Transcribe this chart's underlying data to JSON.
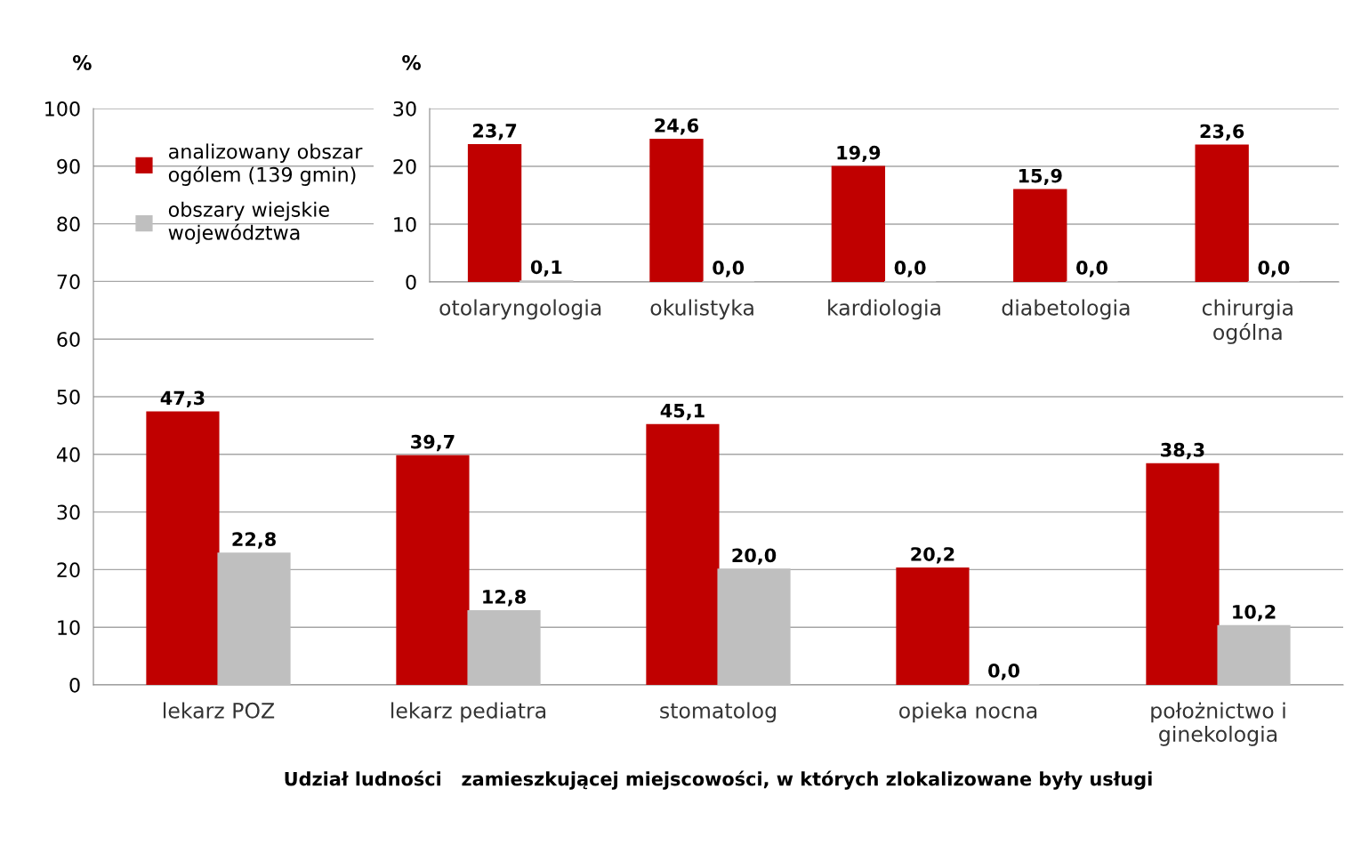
{
  "chart_data": [
    {
      "type": "bar",
      "ylabel": "%",
      "xlabel": "Udział ludności   zamieszkującej miejscowości, w których zlokalizowane były usługi",
      "categories": [
        "lekarz POZ",
        "lekarz pediatra",
        "stomatolog",
        "opieka nocna",
        "położnictwo i\nginekologia"
      ],
      "series": [
        {
          "name": "analizowany obszar\nogólem (139 gmin)",
          "color": "#c00000",
          "values": [
            47.3,
            39.7,
            45.1,
            20.2,
            38.3
          ],
          "value_labels": [
            "47,3",
            "39,7",
            "45,1",
            "20,2",
            "38,3"
          ]
        },
        {
          "name": "obszary wiejskie\nwojewództwa",
          "color": "#bfbfbf",
          "values": [
            22.8,
            12.8,
            20.0,
            0.0,
            10.2
          ],
          "value_labels": [
            "22,8",
            "12,8",
            "20,0",
            "0,0",
            "10,2"
          ]
        }
      ],
      "ylim": [
        0,
        100
      ],
      "yticks": [
        0,
        10,
        20,
        30,
        40,
        50,
        60,
        70,
        80,
        90,
        100
      ],
      "grid": "y",
      "legend": "top left"
    },
    {
      "type": "bar",
      "ylabel": "%",
      "categories": [
        "otolaryngologia",
        "okulistyka",
        "kardiologia",
        "diabetologia",
        "chirurgia\nogólna"
      ],
      "series": [
        {
          "color": "#c00000",
          "values": [
            23.7,
            24.6,
            19.9,
            15.9,
            23.6
          ],
          "value_labels": [
            "23,7",
            "24,6",
            "19,9",
            "15,9",
            "23,6"
          ]
        },
        {
          "color": "#bfbfbf",
          "values": [
            0.1,
            0.0,
            0.0,
            0.0,
            0.0
          ],
          "value_labels": [
            "0,1",
            "0,0",
            "0,0",
            "0,0",
            "0,0"
          ]
        }
      ],
      "ylim": [
        0,
        30
      ],
      "yticks": [
        0,
        10,
        20,
        30
      ],
      "grid": "y"
    }
  ]
}
